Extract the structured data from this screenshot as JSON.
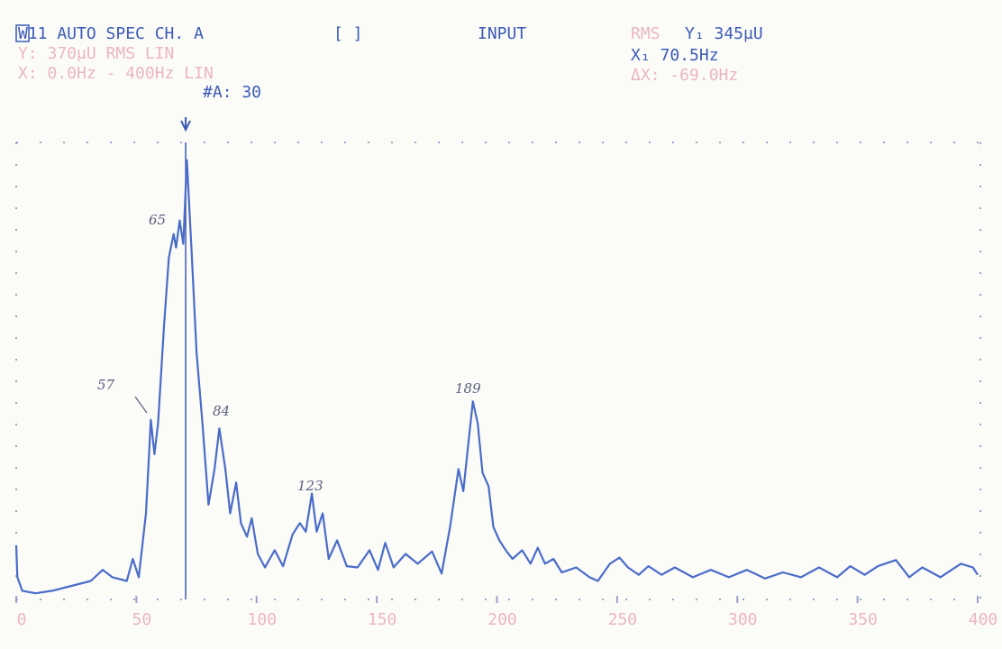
{
  "chart_data": {
    "type": "line",
    "header": {
      "title": "W11 AUTO SPEC CH. A",
      "bracket": "[ ]",
      "input": "INPUT",
      "rms": "RMS",
      "marker_y": "Y₁ 345µU",
      "marker_x_label": "X₁ 70.5Hz",
      "y_scale": "Y: 370µU RMS LIN",
      "x_scale": "X: 0.0Hz - 400Hz LIN",
      "delta_x": "ΔX: -69.0Hz",
      "averages": "#A: 30"
    },
    "annotations": [
      "57",
      "65",
      "84",
      "123",
      "189"
    ],
    "marker_x": 70.5,
    "xlim": [
      0,
      400
    ],
    "ylim": [
      0,
      370
    ],
    "xticks": [
      0,
      50,
      100,
      150,
      200,
      250,
      300,
      350,
      400
    ],
    "series": [
      {
        "color": "#4a6cc8",
        "x": [
          0,
          0.5,
          2.5,
          8,
          15,
          23,
          31,
          36,
          40,
          46,
          48.5,
          51,
          54,
          56,
          57.5,
          59,
          61.5,
          63.5,
          65.5,
          66.5,
          68,
          69.5,
          71,
          73,
          75,
          77.5,
          80,
          82.5,
          84.5,
          87,
          89,
          91.5,
          93.5,
          96,
          98,
          100.5,
          103.5,
          107.5,
          111,
          115,
          118,
          120.5,
          123,
          125,
          127.5,
          130,
          133.5,
          137.5,
          142,
          147,
          150.5,
          153.5,
          157,
          162,
          167,
          173,
          177,
          180.5,
          184,
          186,
          188,
          190,
          192,
          194,
          196.5,
          198.5,
          201,
          204,
          206.5,
          210.5,
          214,
          217,
          220,
          223.5,
          227,
          233,
          238.5,
          242,
          247,
          251,
          254.5,
          259,
          263,
          268.5,
          274,
          281.5,
          289,
          296.5,
          304,
          311.5,
          319,
          326.5,
          334,
          341.5,
          347,
          353,
          358.5,
          366,
          371.5,
          377,
          384.5,
          393,
          398,
          400
        ],
        "values": [
          44,
          18,
          7,
          5,
          7,
          11,
          15,
          24,
          18,
          15,
          33,
          18,
          70,
          146,
          118,
          143,
          223,
          278,
          297,
          286,
          308,
          289,
          357,
          282,
          201,
          143,
          77,
          106,
          139,
          106,
          70,
          95,
          62,
          51,
          66,
          37,
          26,
          40,
          27,
          53,
          62,
          55,
          86,
          55,
          70,
          33,
          48,
          27,
          26,
          40,
          24,
          46,
          26,
          37,
          29,
          39,
          21,
          59,
          106,
          88,
          125,
          161,
          143,
          103,
          92,
          59,
          48,
          39,
          33,
          40,
          29,
          42,
          29,
          33,
          22,
          26,
          18,
          15,
          29,
          34,
          26,
          20,
          27,
          20,
          26,
          18,
          24,
          18,
          24,
          17,
          22,
          18,
          26,
          18,
          27,
          20,
          27,
          32,
          18,
          26,
          18,
          29,
          26,
          20
        ]
      }
    ]
  }
}
